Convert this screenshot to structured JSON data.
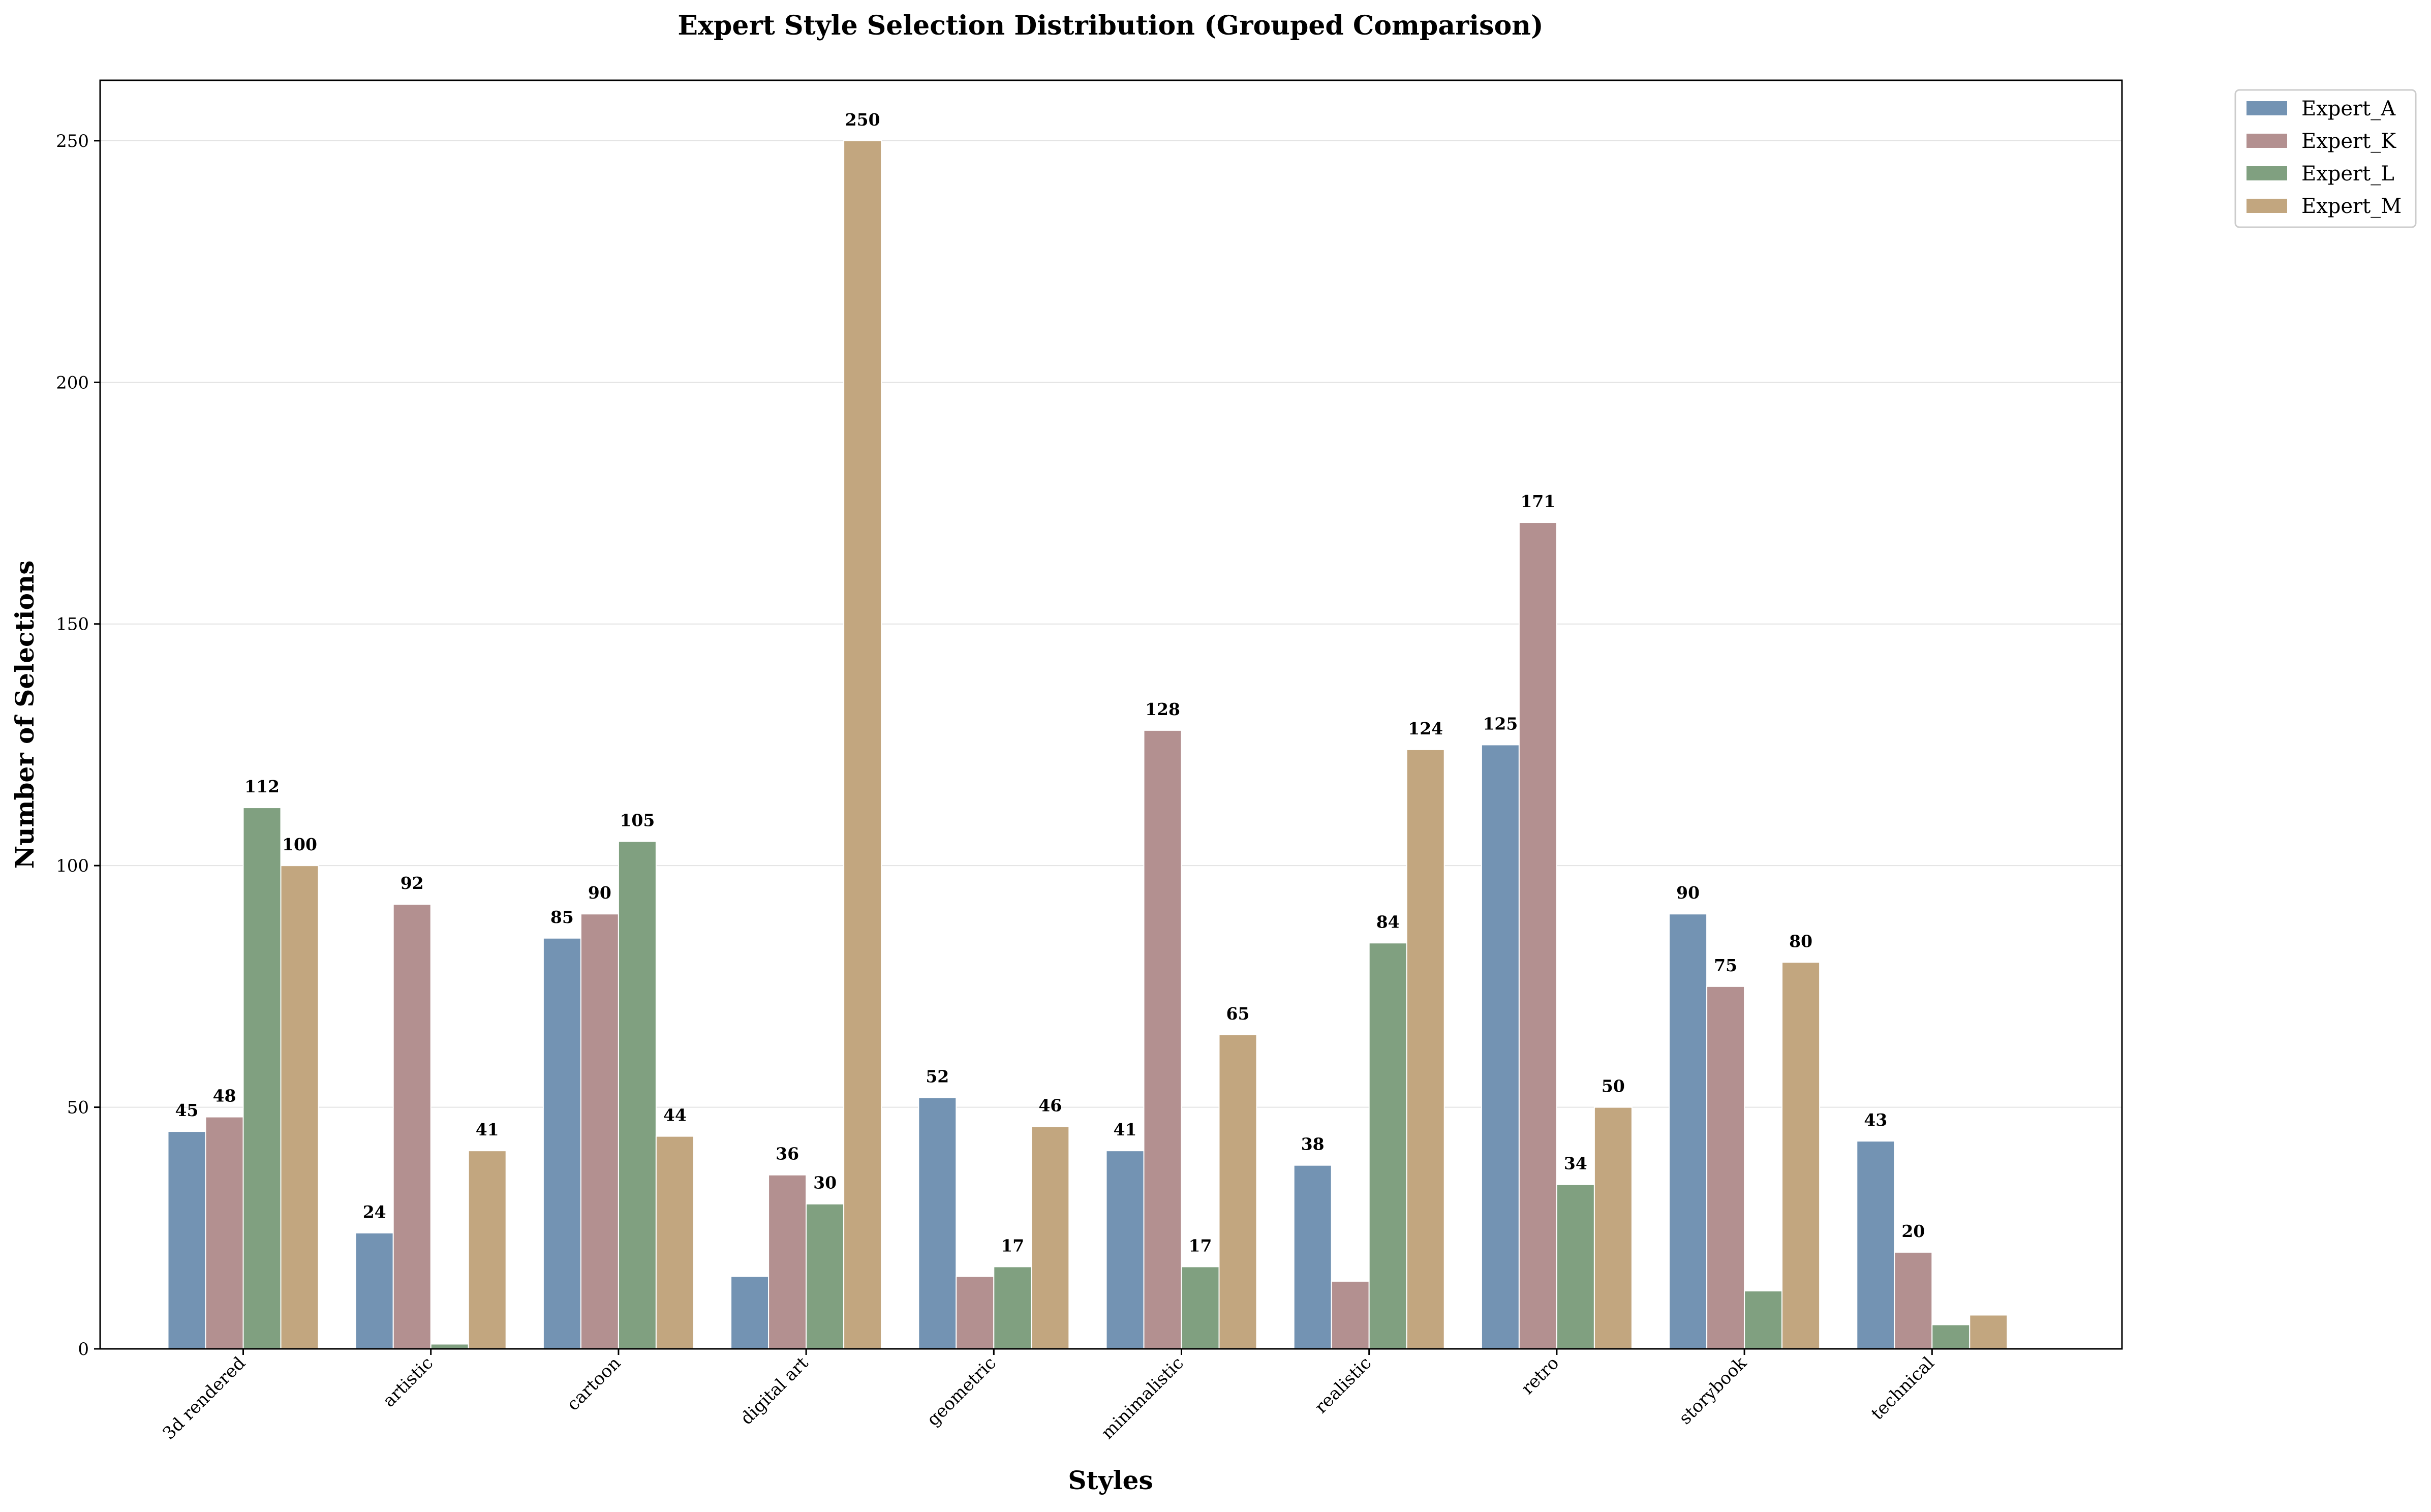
{
  "chart_data": {
    "type": "bar",
    "title": "Expert Style Selection Distribution (Grouped Comparison)",
    "xlabel": "Styles",
    "ylabel": "Number of Selections",
    "categories": [
      "3d rendered",
      "artistic",
      "cartoon",
      "digital art",
      "geometric",
      "minimalistic",
      "realistic",
      "retro",
      "storybook",
      "technical"
    ],
    "series": [
      {
        "name": "Expert_A",
        "color": "#7393b3",
        "values": [
          45,
          24,
          85,
          15,
          52,
          41,
          38,
          125,
          90,
          43
        ]
      },
      {
        "name": "Expert_K",
        "color": "#b39090",
        "values": [
          48,
          92,
          90,
          36,
          15,
          128,
          14,
          171,
          75,
          20
        ]
      },
      {
        "name": "Expert_L",
        "color": "#80a080",
        "values": [
          112,
          1,
          105,
          30,
          17,
          17,
          84,
          34,
          12,
          5
        ]
      },
      {
        "name": "Expert_M",
        "color": "#c2a67f",
        "values": [
          100,
          41,
          44,
          250,
          46,
          65,
          124,
          50,
          80,
          7
        ]
      }
    ],
    "value_labels_shown": [
      [
        true,
        true,
        true,
        false,
        true,
        true,
        true,
        true,
        true,
        true
      ],
      [
        true,
        true,
        true,
        true,
        false,
        true,
        false,
        true,
        true,
        true
      ],
      [
        true,
        false,
        true,
        true,
        true,
        true,
        true,
        true,
        false,
        false
      ],
      [
        true,
        true,
        true,
        true,
        true,
        true,
        true,
        true,
        true,
        false
      ]
    ],
    "ylim": [
      0,
      262.5
    ],
    "yticks": [
      0,
      50,
      100,
      150,
      200,
      250
    ],
    "grid": "horizontal",
    "legend": "outside top-right"
  }
}
